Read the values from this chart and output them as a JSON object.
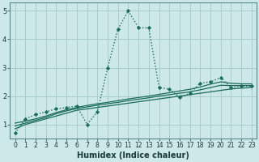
{
  "title": "",
  "xlabel": "Humidex (Indice chaleur)",
  "ylabel": "",
  "bg_color": "#cce8e8",
  "grid_color": "#aacccc",
  "line_color": "#1a6b5a",
  "xlim": [
    -0.5,
    23.5
  ],
  "ylim": [
    0.5,
    5.3
  ],
  "xticks": [
    0,
    1,
    2,
    3,
    4,
    5,
    6,
    7,
    8,
    9,
    10,
    11,
    12,
    13,
    14,
    15,
    16,
    17,
    18,
    19,
    20,
    21,
    22,
    23
  ],
  "yticks": [
    1,
    2,
    3,
    4,
    5
  ],
  "series_dotted": {
    "x": [
      0,
      1,
      2,
      3,
      4,
      5,
      6,
      7,
      8,
      9,
      10,
      11,
      12,
      13,
      14,
      15,
      16,
      17,
      18,
      19,
      20,
      21,
      22,
      23
    ],
    "y": [
      0.7,
      1.2,
      1.35,
      1.45,
      1.55,
      1.6,
      1.65,
      1.0,
      1.45,
      3.0,
      4.35,
      5.0,
      4.4,
      4.4,
      2.3,
      2.25,
      1.95,
      2.1,
      2.45,
      2.5,
      2.65,
      2.3,
      2.35,
      2.35
    ]
  },
  "series_solid": [
    {
      "x": [
        0,
        1,
        2,
        3,
        4,
        5,
        6,
        7,
        8,
        9,
        10,
        11,
        12,
        13,
        14,
        15,
        16,
        17,
        18,
        19,
        20,
        21,
        22,
        23
      ],
      "y": [
        0.85,
        1.0,
        1.1,
        1.2,
        1.3,
        1.4,
        1.5,
        1.55,
        1.6,
        1.65,
        1.7,
        1.75,
        1.8,
        1.85,
        1.9,
        1.95,
        2.0,
        2.05,
        2.1,
        2.15,
        2.2,
        2.25,
        2.28,
        2.3
      ]
    },
    {
      "x": [
        0,
        1,
        2,
        3,
        4,
        5,
        6,
        7,
        8,
        9,
        10,
        11,
        12,
        13,
        14,
        15,
        16,
        17,
        18,
        19,
        20,
        21,
        22,
        23
      ],
      "y": [
        0.95,
        1.05,
        1.15,
        1.25,
        1.38,
        1.48,
        1.56,
        1.62,
        1.68,
        1.73,
        1.78,
        1.84,
        1.89,
        1.94,
        2.0,
        2.05,
        2.1,
        2.15,
        2.22,
        2.3,
        2.38,
        2.37,
        2.37,
        2.37
      ]
    },
    {
      "x": [
        0,
        1,
        2,
        3,
        4,
        5,
        6,
        7,
        8,
        9,
        10,
        11,
        12,
        13,
        14,
        15,
        16,
        17,
        18,
        19,
        20,
        21,
        22,
        23
      ],
      "y": [
        1.05,
        1.12,
        1.2,
        1.3,
        1.42,
        1.52,
        1.6,
        1.67,
        1.73,
        1.78,
        1.84,
        1.9,
        1.95,
        2.0,
        2.06,
        2.12,
        2.18,
        2.24,
        2.32,
        2.42,
        2.5,
        2.45,
        2.43,
        2.43
      ]
    }
  ]
}
